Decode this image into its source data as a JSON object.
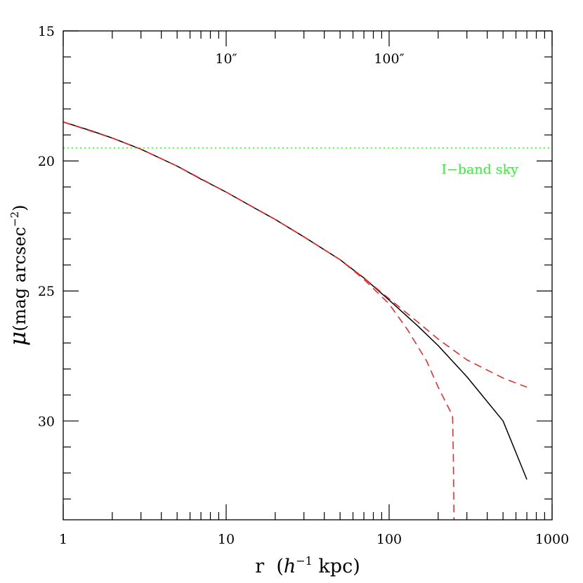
{
  "chart_data": {
    "type": "line",
    "x_scale": "log",
    "y_inverted": true,
    "xlim": [
      1,
      1000
    ],
    "ylim": [
      33.8,
      15
    ],
    "xlabel": {
      "prefix": "r  (",
      "sym": "h",
      "sup": "−1",
      "suffix": " kpc)"
    },
    "ylabel": {
      "sym": "μ",
      "text": "(mag arcsec",
      "sup": "−2",
      "suffix": ")"
    },
    "x_ticks": [
      {
        "value": 1,
        "label": "1"
      },
      {
        "value": 10,
        "label": "10"
      },
      {
        "value": 100,
        "label": "100"
      },
      {
        "value": 1000,
        "label": "1000"
      }
    ],
    "y_ticks": [
      {
        "value": 15,
        "label": "15"
      },
      {
        "value": 20,
        "label": "20"
      },
      {
        "value": 25,
        "label": "25"
      },
      {
        "value": 30,
        "label": "30"
      }
    ],
    "top_ticks": [
      {
        "value": 10,
        "label": "10″"
      },
      {
        "value": 100,
        "label": "100″"
      }
    ],
    "sky": {
      "value": 19.5,
      "label": "I−band sky",
      "color": "#33ee33"
    },
    "series": [
      {
        "style": "solid",
        "color": "#000000",
        "x": [
          1,
          1.5,
          2,
          3,
          5,
          7,
          10,
          15,
          20,
          30,
          50,
          70,
          100,
          150,
          200,
          300,
          500,
          700
        ],
        "y": [
          18.5,
          18.85,
          19.12,
          19.55,
          20.2,
          20.7,
          21.2,
          21.82,
          22.25,
          22.92,
          23.8,
          24.5,
          25.35,
          26.35,
          27.1,
          28.3,
          30.0,
          32.25
        ]
      },
      {
        "style": "dashed",
        "color": "#ee2222",
        "x": [
          1,
          2,
          3,
          5,
          10,
          20,
          30,
          50,
          70,
          100,
          150,
          200,
          300,
          500,
          700
        ],
        "y": [
          18.5,
          19.12,
          19.55,
          20.2,
          21.2,
          22.25,
          22.92,
          23.8,
          24.5,
          25.3,
          26.2,
          26.85,
          27.65,
          28.35,
          28.7
        ]
      },
      {
        "style": "dashed",
        "color": "#ee2222",
        "x": [
          1,
          2,
          3,
          5,
          10,
          20,
          30,
          50,
          70,
          100,
          130,
          170,
          200,
          245,
          248,
          250
        ],
        "y": [
          18.5,
          19.12,
          19.55,
          20.2,
          21.2,
          22.25,
          22.92,
          23.8,
          24.55,
          25.5,
          26.5,
          27.7,
          28.7,
          29.8,
          31.5,
          33.8
        ]
      }
    ]
  }
}
